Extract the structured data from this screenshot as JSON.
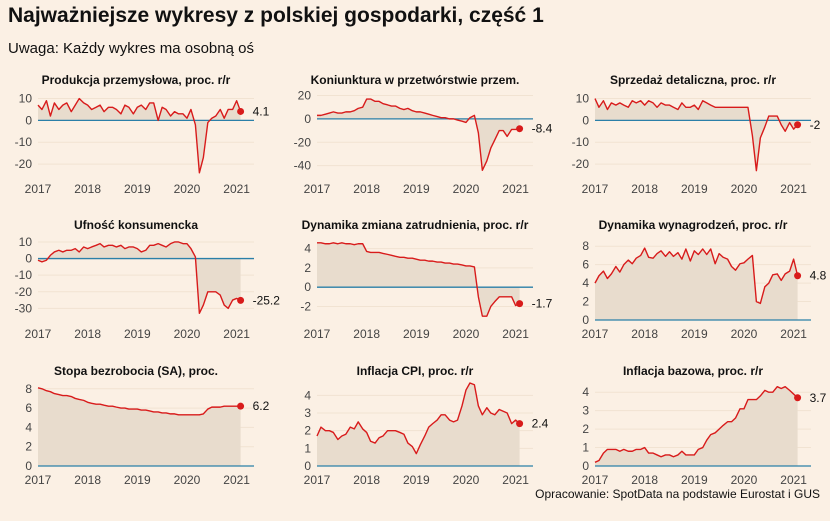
{
  "title": "Najważniejsze wykresy z polskiej gospodarki, część 1",
  "subtitle": "Uwaga: Każdy wykres ma osobną oś",
  "caption": "Opracowanie: SpotData na podstawie Eurostat i GUS",
  "colors": {
    "background": "#fbf0e4",
    "line": "#d81b1b",
    "area": "#e8dccd",
    "zero_line": "#2a7fa8",
    "grid": "#f1e3d2"
  },
  "chart_data": [
    {
      "type": "area",
      "title": "Produkcja przemysłowa, proc. r/r",
      "x_ticks": [
        "2017",
        "2018",
        "2019",
        "2020",
        "2021"
      ],
      "x_range": [
        2017,
        2021.35
      ],
      "y_ticks": [
        10,
        0,
        -10,
        -20
      ],
      "ylim": [
        -25,
        13
      ],
      "last_label": "4.1",
      "x": [
        2017.0,
        2017.08,
        2017.17,
        2017.25,
        2017.33,
        2017.42,
        2017.5,
        2017.58,
        2017.67,
        2017.75,
        2017.83,
        2017.92,
        2018.0,
        2018.08,
        2018.17,
        2018.25,
        2018.33,
        2018.42,
        2018.5,
        2018.58,
        2018.67,
        2018.75,
        2018.83,
        2018.92,
        2019.0,
        2019.08,
        2019.17,
        2019.25,
        2019.33,
        2019.42,
        2019.5,
        2019.58,
        2019.67,
        2019.75,
        2019.83,
        2019.92,
        2020.0,
        2020.08,
        2020.17,
        2020.25,
        2020.33,
        2020.42,
        2020.5,
        2020.58,
        2020.67,
        2020.75,
        2020.83,
        2020.92,
        2021.0,
        2021.08
      ],
      "y": [
        7,
        5,
        9,
        2,
        8,
        5,
        7,
        8,
        4,
        7,
        10,
        8,
        7,
        5,
        6,
        7,
        4,
        6,
        6,
        5,
        3,
        7,
        6,
        3,
        6,
        7,
        5,
        8,
        8,
        0,
        6,
        5,
        2,
        4,
        3,
        3,
        1,
        5,
        -2,
        -24,
        -17,
        -1,
        1,
        2,
        5,
        1,
        5,
        5,
        9,
        4.1
      ]
    },
    {
      "type": "area",
      "title": "Koniunktura w przetwórstwie przem.",
      "x_ticks": [
        "2017",
        "2018",
        "2019",
        "2020",
        "2021"
      ],
      "x_range": [
        2017,
        2021.35
      ],
      "y_ticks": [
        20,
        0,
        -20,
        -40
      ],
      "ylim": [
        -48,
        23
      ],
      "last_label": "-8.4",
      "x": [
        2017.0,
        2017.08,
        2017.17,
        2017.25,
        2017.33,
        2017.42,
        2017.5,
        2017.58,
        2017.67,
        2017.75,
        2017.83,
        2017.92,
        2018.0,
        2018.08,
        2018.17,
        2018.25,
        2018.33,
        2018.42,
        2018.5,
        2018.58,
        2018.67,
        2018.75,
        2018.83,
        2018.92,
        2019.0,
        2019.08,
        2019.17,
        2019.25,
        2019.33,
        2019.42,
        2019.5,
        2019.58,
        2019.67,
        2019.75,
        2019.83,
        2019.92,
        2020.0,
        2020.08,
        2020.17,
        2020.25,
        2020.33,
        2020.42,
        2020.5,
        2020.58,
        2020.67,
        2020.75,
        2020.83,
        2020.92,
        2021.0,
        2021.08
      ],
      "y": [
        3,
        3,
        4,
        5,
        6,
        5,
        5,
        6,
        6,
        7,
        9,
        10,
        17,
        17,
        15,
        15,
        13,
        12,
        11,
        11,
        9,
        8,
        9,
        7,
        6,
        6,
        5,
        4,
        3,
        2,
        1,
        1,
        0,
        0,
        -1,
        -2,
        -3,
        1,
        3,
        -12,
        -44,
        -36,
        -25,
        -18,
        -10,
        -10,
        -15,
        -9,
        -9,
        -8.4
      ]
    },
    {
      "type": "area",
      "title": "Sprzedaż detaliczna, proc. r/r",
      "x_ticks": [
        "2017",
        "2018",
        "2019",
        "2020",
        "2021"
      ],
      "x_range": [
        2017,
        2021.35
      ],
      "y_ticks": [
        10,
        0,
        -10,
        -20
      ],
      "ylim": [
        -25,
        13
      ],
      "last_label": "-2",
      "x": [
        2017.0,
        2017.08,
        2017.17,
        2017.25,
        2017.33,
        2017.42,
        2017.5,
        2017.58,
        2017.67,
        2017.75,
        2017.83,
        2017.92,
        2018.0,
        2018.08,
        2018.17,
        2018.25,
        2018.33,
        2018.42,
        2018.5,
        2018.58,
        2018.67,
        2018.75,
        2018.83,
        2018.92,
        2019.0,
        2019.08,
        2019.17,
        2019.25,
        2019.33,
        2019.42,
        2019.5,
        2019.58,
        2019.67,
        2019.75,
        2019.83,
        2019.92,
        2020.0,
        2020.08,
        2020.17,
        2020.25,
        2020.33,
        2020.42,
        2020.5,
        2020.58,
        2020.67,
        2020.75,
        2020.83,
        2020.92,
        2021.0,
        2021.08
      ],
      "y": [
        10,
        6,
        9,
        5,
        8,
        7,
        8,
        7,
        6,
        9,
        8,
        9,
        7,
        9,
        8,
        6,
        8,
        7,
        7,
        6,
        5,
        8,
        6,
        6,
        7,
        5,
        9,
        8,
        7,
        6,
        6,
        6,
        6,
        6,
        6,
        6,
        6,
        6,
        -7,
        -23,
        -8,
        -3,
        2,
        2,
        2,
        -2,
        -5,
        -1,
        -4,
        -2
      ]
    },
    {
      "type": "area",
      "title": "Ufność konsumencka",
      "x_ticks": [
        "2017",
        "2018",
        "2019",
        "2020",
        "2021"
      ],
      "x_range": [
        2017,
        2021.35
      ],
      "y_ticks": [
        10,
        0,
        -10,
        -20,
        -30
      ],
      "ylim": [
        -37,
        13
      ],
      "last_label": "-25.2",
      "x": [
        2017.0,
        2017.08,
        2017.17,
        2017.25,
        2017.33,
        2017.42,
        2017.5,
        2017.58,
        2017.67,
        2017.75,
        2017.83,
        2017.92,
        2018.0,
        2018.08,
        2018.17,
        2018.25,
        2018.33,
        2018.42,
        2018.5,
        2018.58,
        2018.67,
        2018.75,
        2018.83,
        2018.92,
        2019.0,
        2019.08,
        2019.17,
        2019.25,
        2019.33,
        2019.42,
        2019.5,
        2019.58,
        2019.67,
        2019.75,
        2019.83,
        2019.92,
        2020.0,
        2020.08,
        2020.17,
        2020.25,
        2020.33,
        2020.42,
        2020.5,
        2020.58,
        2020.67,
        2020.75,
        2020.83,
        2020.92,
        2021.0,
        2021.08
      ],
      "y": [
        -1,
        -2,
        -1,
        2,
        4,
        5,
        4,
        5,
        5,
        6,
        4,
        7,
        6,
        7,
        8,
        9,
        7,
        8,
        8,
        7,
        8,
        6,
        7,
        7,
        6,
        4,
        5,
        8,
        8,
        9,
        8,
        7,
        9,
        10,
        10,
        9,
        9,
        6,
        1,
        -33,
        -28,
        -20,
        -20,
        -20,
        -22,
        -28,
        -30,
        -25,
        -24,
        -25.2
      ]
    },
    {
      "type": "area",
      "title": "Dynamika zmiana zatrudnienia, proc. r/r",
      "x_ticks": [
        "2017",
        "2018",
        "2019",
        "2020",
        "2021"
      ],
      "x_range": [
        2017,
        2021.35
      ],
      "y_ticks": [
        4,
        2,
        0,
        -2
      ],
      "ylim": [
        -3.4,
        5.2
      ],
      "last_label": "-1.7",
      "x": [
        2017.0,
        2017.08,
        2017.17,
        2017.25,
        2017.33,
        2017.42,
        2017.5,
        2017.58,
        2017.67,
        2017.75,
        2017.83,
        2017.92,
        2018.0,
        2018.08,
        2018.17,
        2018.25,
        2018.33,
        2018.42,
        2018.5,
        2018.58,
        2018.67,
        2018.75,
        2018.83,
        2018.92,
        2019.0,
        2019.08,
        2019.17,
        2019.25,
        2019.33,
        2019.42,
        2019.5,
        2019.58,
        2019.67,
        2019.75,
        2019.83,
        2019.92,
        2020.0,
        2020.08,
        2020.17,
        2020.25,
        2020.33,
        2020.42,
        2020.5,
        2020.58,
        2020.67,
        2020.75,
        2020.83,
        2020.92,
        2021.0,
        2021.08
      ],
      "y": [
        4.6,
        4.6,
        4.5,
        4.5,
        4.6,
        4.5,
        4.6,
        4.5,
        4.5,
        4.4,
        4.5,
        4.5,
        3.7,
        3.6,
        3.6,
        3.6,
        3.5,
        3.4,
        3.3,
        3.2,
        3.1,
        3.1,
        3.0,
        3.0,
        2.9,
        2.8,
        2.8,
        2.7,
        2.7,
        2.6,
        2.6,
        2.5,
        2.5,
        2.4,
        2.4,
        2.3,
        2.2,
        2.2,
        2.1,
        -1.0,
        -3.0,
        -3.0,
        -2.0,
        -1.5,
        -1.0,
        -1.0,
        -1.0,
        -1.0,
        -1.9,
        -1.7
      ]
    },
    {
      "type": "area",
      "title": "Dynamika wynagrodzeń, proc. r/r",
      "x_ticks": [
        "2017",
        "2018",
        "2019",
        "2020",
        "2021"
      ],
      "x_range": [
        2017,
        2021.35
      ],
      "y_ticks": [
        8,
        6,
        4,
        2,
        0
      ],
      "ylim": [
        0,
        9
      ],
      "last_label": "4.8",
      "x": [
        2017.0,
        2017.08,
        2017.17,
        2017.25,
        2017.33,
        2017.42,
        2017.5,
        2017.58,
        2017.67,
        2017.75,
        2017.83,
        2017.92,
        2018.0,
        2018.08,
        2018.17,
        2018.25,
        2018.33,
        2018.42,
        2018.5,
        2018.58,
        2018.67,
        2018.75,
        2018.83,
        2018.92,
        2019.0,
        2019.08,
        2019.17,
        2019.25,
        2019.33,
        2019.42,
        2019.5,
        2019.58,
        2019.67,
        2019.75,
        2019.83,
        2019.92,
        2020.0,
        2020.08,
        2020.17,
        2020.25,
        2020.33,
        2020.42,
        2020.5,
        2020.58,
        2020.67,
        2020.75,
        2020.83,
        2020.92,
        2021.0,
        2021.08
      ],
      "y": [
        4.0,
        4.8,
        5.3,
        4.5,
        5.0,
        5.8,
        5.2,
        6.0,
        6.5,
        6.1,
        6.7,
        7.0,
        7.8,
        6.8,
        6.7,
        7.2,
        7.5,
        6.9,
        7.4,
        6.9,
        7.3,
        6.6,
        7.7,
        6.4,
        7.5,
        7.1,
        7.7,
        7.1,
        7.7,
        6.1,
        7.2,
        6.8,
        6.6,
        5.8,
        5.4,
        6.1,
        6.2,
        6.6,
        7.0,
        2.0,
        1.8,
        3.6,
        4.0,
        4.9,
        5.0,
        4.3,
        5.0,
        5.3,
        6.6,
        4.8
      ]
    },
    {
      "type": "area",
      "title": "Stopa bezrobocia (SA), proc.",
      "x_ticks": [
        "2017",
        "2018",
        "2019",
        "2020",
        "2021"
      ],
      "x_range": [
        2017,
        2021.35
      ],
      "y_ticks": [
        8,
        6,
        4,
        2,
        0
      ],
      "ylim": [
        0,
        8.6
      ],
      "last_label": "6.2",
      "x": [
        2017.0,
        2017.08,
        2017.17,
        2017.25,
        2017.33,
        2017.42,
        2017.5,
        2017.58,
        2017.67,
        2017.75,
        2017.83,
        2017.92,
        2018.0,
        2018.08,
        2018.17,
        2018.25,
        2018.33,
        2018.42,
        2018.5,
        2018.58,
        2018.67,
        2018.75,
        2018.83,
        2018.92,
        2019.0,
        2019.08,
        2019.17,
        2019.25,
        2019.33,
        2019.42,
        2019.5,
        2019.58,
        2019.67,
        2019.75,
        2019.83,
        2019.92,
        2020.0,
        2020.08,
        2020.17,
        2020.25,
        2020.33,
        2020.42,
        2020.5,
        2020.58,
        2020.67,
        2020.75,
        2020.83,
        2020.92,
        2021.0,
        2021.08
      ],
      "y": [
        8.1,
        8.0,
        7.8,
        7.7,
        7.5,
        7.4,
        7.3,
        7.3,
        7.2,
        7.0,
        6.9,
        6.8,
        6.6,
        6.5,
        6.4,
        6.4,
        6.3,
        6.2,
        6.2,
        6.1,
        6.0,
        6.0,
        5.9,
        5.9,
        5.9,
        5.8,
        5.8,
        5.7,
        5.6,
        5.6,
        5.5,
        5.5,
        5.4,
        5.4,
        5.3,
        5.3,
        5.3,
        5.3,
        5.3,
        5.3,
        5.4,
        5.9,
        6.1,
        6.1,
        6.1,
        6.2,
        6.2,
        6.2,
        6.2,
        6.2
      ]
    },
    {
      "type": "area",
      "title": "Inflacja CPI, proc. r/r",
      "x_ticks": [
        "2017",
        "2018",
        "2019",
        "2020",
        "2021"
      ],
      "x_range": [
        2017,
        2021.35
      ],
      "y_ticks": [
        4,
        3,
        2,
        1,
        0
      ],
      "ylim": [
        0,
        4.7
      ],
      "last_label": "2.4",
      "x": [
        2017.0,
        2017.08,
        2017.17,
        2017.25,
        2017.33,
        2017.42,
        2017.5,
        2017.58,
        2017.67,
        2017.75,
        2017.83,
        2017.92,
        2018.0,
        2018.08,
        2018.17,
        2018.25,
        2018.33,
        2018.42,
        2018.5,
        2018.58,
        2018.67,
        2018.75,
        2018.83,
        2018.92,
        2019.0,
        2019.08,
        2019.17,
        2019.25,
        2019.33,
        2019.42,
        2019.5,
        2019.58,
        2019.67,
        2019.75,
        2019.83,
        2019.92,
        2020.0,
        2020.08,
        2020.17,
        2020.25,
        2020.33,
        2020.42,
        2020.5,
        2020.58,
        2020.67,
        2020.75,
        2020.83,
        2020.92,
        2021.0,
        2021.08
      ],
      "y": [
        1.7,
        2.2,
        2.0,
        2.0,
        1.9,
        1.5,
        1.7,
        1.8,
        2.2,
        2.1,
        2.5,
        2.1,
        1.9,
        1.4,
        1.3,
        1.6,
        1.7,
        2.0,
        2.0,
        2.0,
        1.9,
        1.8,
        1.3,
        1.1,
        0.7,
        1.2,
        1.7,
        2.2,
        2.4,
        2.6,
        2.9,
        2.9,
        2.6,
        2.5,
        2.6,
        3.4,
        4.3,
        4.7,
        4.6,
        3.4,
        2.9,
        3.3,
        3.0,
        2.9,
        3.2,
        3.1,
        3.0,
        2.4,
        2.6,
        2.4
      ]
    },
    {
      "type": "area",
      "title": "Inflacja bazowa, proc. r/r",
      "x_ticks": [
        "2017",
        "2018",
        "2019",
        "2020",
        "2021"
      ],
      "x_range": [
        2017,
        2021.35
      ],
      "y_ticks": [
        4,
        3,
        2,
        1,
        0
      ],
      "ylim": [
        0,
        4.5
      ],
      "last_label": "3.7",
      "x": [
        2017.0,
        2017.08,
        2017.17,
        2017.25,
        2017.33,
        2017.42,
        2017.5,
        2017.58,
        2017.67,
        2017.75,
        2017.83,
        2017.92,
        2018.0,
        2018.08,
        2018.17,
        2018.25,
        2018.33,
        2018.42,
        2018.5,
        2018.58,
        2018.67,
        2018.75,
        2018.83,
        2018.92,
        2019.0,
        2019.08,
        2019.17,
        2019.25,
        2019.33,
        2019.42,
        2019.5,
        2019.58,
        2019.67,
        2019.75,
        2019.83,
        2019.92,
        2020.0,
        2020.08,
        2020.17,
        2020.25,
        2020.33,
        2020.42,
        2020.5,
        2020.58,
        2020.67,
        2020.75,
        2020.83,
        2020.92,
        2021.0,
        2021.08
      ],
      "y": [
        0.2,
        0.3,
        0.7,
        0.9,
        0.9,
        0.9,
        0.8,
        0.9,
        0.8,
        0.8,
        0.9,
        0.9,
        1.0,
        0.7,
        0.7,
        0.6,
        0.5,
        0.6,
        0.6,
        0.5,
        0.6,
        0.8,
        0.6,
        0.6,
        0.6,
        0.9,
        1.0,
        1.4,
        1.7,
        1.8,
        2.0,
        2.2,
        2.4,
        2.4,
        2.6,
        3.1,
        3.1,
        3.6,
        3.6,
        3.6,
        3.8,
        4.1,
        4.0,
        4.0,
        4.3,
        4.2,
        4.3,
        4.1,
        3.9,
        3.7
      ]
    }
  ]
}
